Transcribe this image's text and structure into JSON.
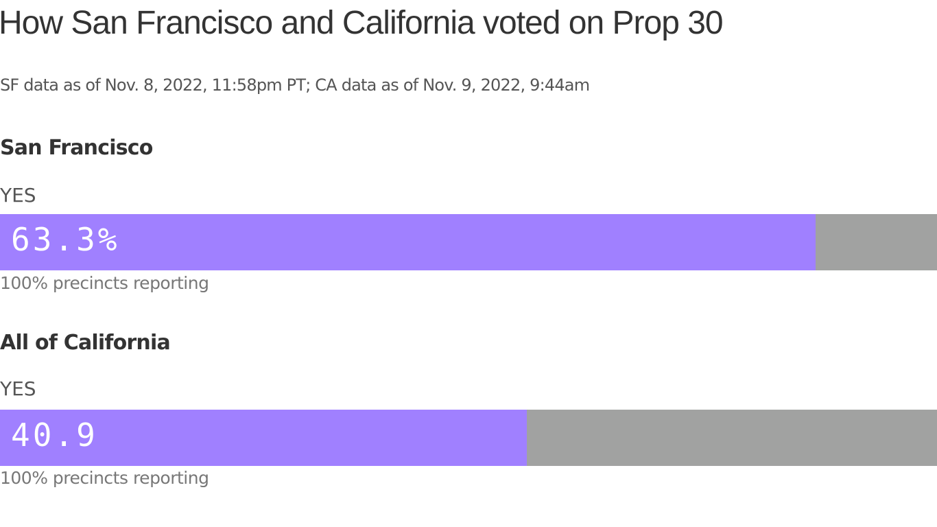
{
  "title": "How San Francisco and California voted on Prop 30",
  "subtitle": "SF data as of Nov. 8, 2022, 11:58pm PT; CA data as of Nov. 9, 2022, 9:44am",
  "colors": {
    "yes": "#a080ff",
    "remainder": "#a1a2a1"
  },
  "chart_data": {
    "type": "bar",
    "orientation": "horizontal",
    "categories": [
      "San Francisco",
      "All of California"
    ],
    "series": [
      {
        "name": "YES",
        "values": [
          63.3,
          40.9
        ]
      }
    ],
    "xlim": [
      0,
      100
    ],
    "data_labels": [
      "63.3%",
      "40.9"
    ],
    "series_label": "YES",
    "notes": [
      "100% precincts reporting",
      "100% precincts reporting"
    ]
  }
}
